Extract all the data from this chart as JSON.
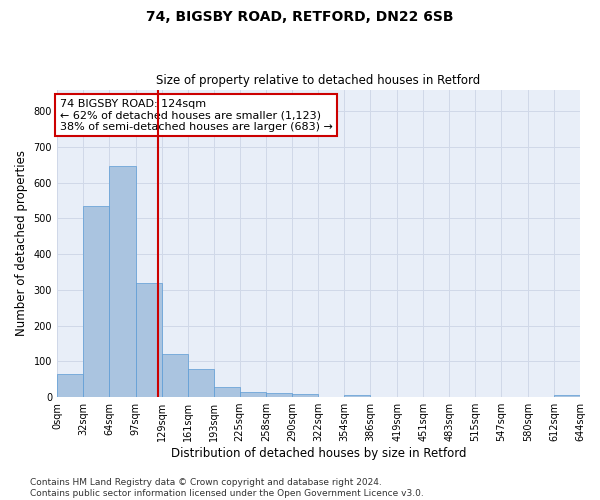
{
  "title1": "74, BIGSBY ROAD, RETFORD, DN22 6SB",
  "title2": "Size of property relative to detached houses in Retford",
  "xlabel": "Distribution of detached houses by size in Retford",
  "ylabel": "Number of detached properties",
  "bin_edges": [
    0,
    32,
    64,
    97,
    129,
    161,
    193,
    225,
    258,
    290,
    322,
    354,
    386,
    419,
    451,
    483,
    515,
    547,
    580,
    612,
    644
  ],
  "bar_heights": [
    65,
    535,
    645,
    318,
    120,
    78,
    28,
    13,
    11,
    10,
    0,
    7,
    0,
    0,
    0,
    0,
    0,
    0,
    0,
    6
  ],
  "bar_color": "#aac4e0",
  "bar_edge_color": "#5b9bd5",
  "bar_linewidth": 0.5,
  "vline_x": 124,
  "vline_color": "#cc0000",
  "vline_linewidth": 1.5,
  "annotation_text": "74 BIGSBY ROAD: 124sqm\n← 62% of detached houses are smaller (1,123)\n38% of semi-detached houses are larger (683) →",
  "annotation_box_color": "#ffffff",
  "annotation_box_edge_color": "#cc0000",
  "ylim": [
    0,
    860
  ],
  "yticks": [
    0,
    100,
    200,
    300,
    400,
    500,
    600,
    700,
    800
  ],
  "grid_color": "#d0d8e8",
  "background_color": "#e8eef8",
  "footer_text": "Contains HM Land Registry data © Crown copyright and database right 2024.\nContains public sector information licensed under the Open Government Licence v3.0.",
  "tick_label_fontsize": 7.0,
  "title1_fontsize": 10,
  "title2_fontsize": 8.5,
  "xlabel_fontsize": 8.5,
  "ylabel_fontsize": 8.5,
  "annotation_fontsize": 8.0,
  "footer_fontsize": 6.5
}
